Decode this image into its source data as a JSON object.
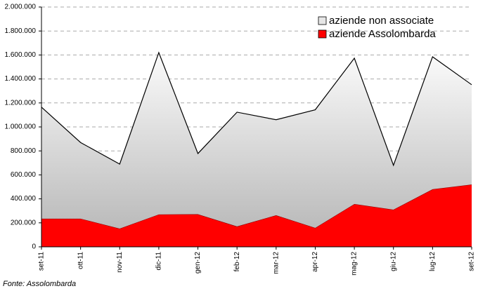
{
  "chart_data": {
    "type": "stacked-area",
    "categories": [
      "set-11",
      "ott-11",
      "nov-11",
      "dic-11",
      "gen-12",
      "feb-12",
      "mar-12",
      "apr-12",
      "mag-12",
      "giu-12",
      "lug-12",
      "set-12"
    ],
    "series": [
      {
        "name": "aziende Assolombarda",
        "color": "#ff0000",
        "values": [
          235000,
          235000,
          152000,
          270000,
          272000,
          170000,
          263000,
          158000,
          357000,
          310000,
          480000,
          520000
        ]
      },
      {
        "name": "aziende non associate",
        "color": "#c8c8c8",
        "values": [
          930000,
          635000,
          538000,
          1350000,
          506000,
          953000,
          797000,
          985000,
          1216000,
          370000,
          1105000,
          832000
        ]
      }
    ],
    "ylim": [
      0,
      2000000
    ],
    "yticks": [
      0,
      {
        "value": 200000,
        "label": "200.000"
      },
      {
        "value": 400000,
        "label": "400.000"
      },
      {
        "value": 600000,
        "label": "600.000"
      },
      {
        "value": 800000,
        "label": "800.000"
      },
      {
        "value": 1000000,
        "label": "1.000.000"
      },
      {
        "value": 1200000,
        "label": "1.200.000"
      },
      {
        "value": 1400000,
        "label": "1.400.000"
      },
      {
        "value": 1600000,
        "label": "1.600.000"
      },
      {
        "value": 1800000,
        "label": "1.800.000"
      },
      {
        "value": 2000000,
        "label": "2.000.000"
      }
    ],
    "grid": true,
    "legend": "top-right",
    "source": "Fonte: Assolombarda"
  }
}
